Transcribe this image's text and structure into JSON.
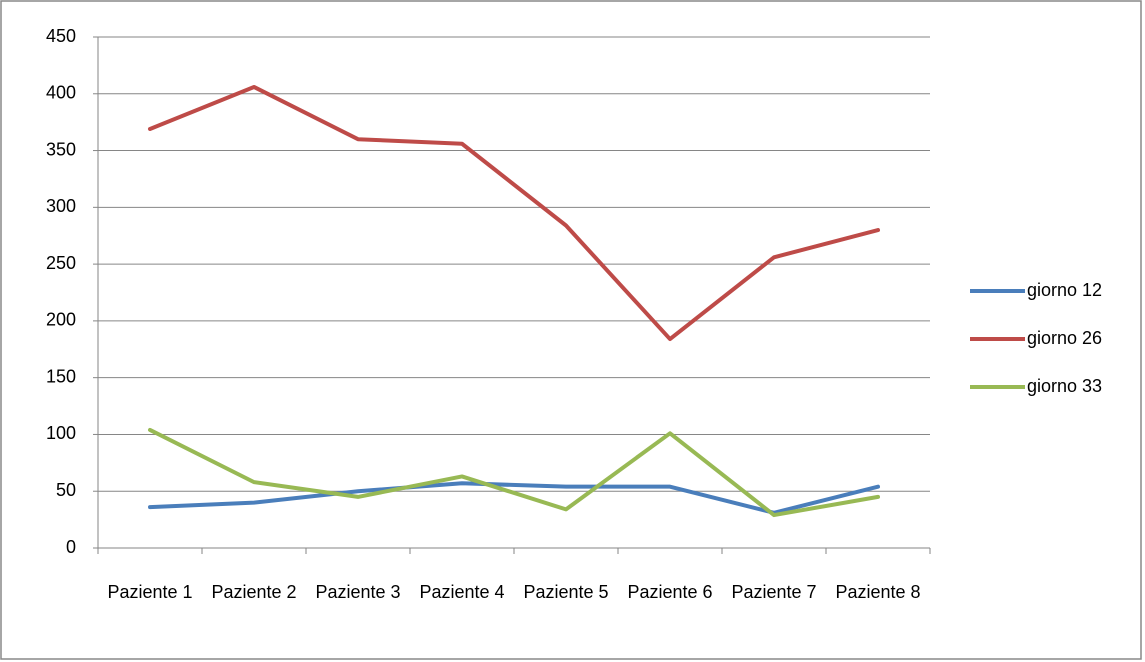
{
  "chart_data": {
    "type": "line",
    "categories": [
      "Paziente 1",
      "Paziente 2",
      "Paziente 3",
      "Paziente 4",
      "Paziente 5",
      "Paziente 6",
      "Paziente 7",
      "Paziente 8"
    ],
    "series": [
      {
        "name": "giorno 12",
        "color": "#4a7ebb",
        "values": [
          36,
          40,
          50,
          57,
          54,
          54,
          31,
          54
        ]
      },
      {
        "name": "giorno 26",
        "color": "#be4b48",
        "values": [
          369,
          406,
          360,
          356,
          284,
          184,
          256,
          280
        ]
      },
      {
        "name": "giorno 33",
        "color": "#98b954",
        "values": [
          104,
          58,
          45,
          63,
          34,
          101,
          29,
          45
        ]
      }
    ],
    "ylim": [
      0,
      450
    ],
    "yticks": [
      0,
      50,
      100,
      150,
      200,
      250,
      300,
      350,
      400,
      450
    ],
    "grid": true,
    "legend": "right"
  }
}
